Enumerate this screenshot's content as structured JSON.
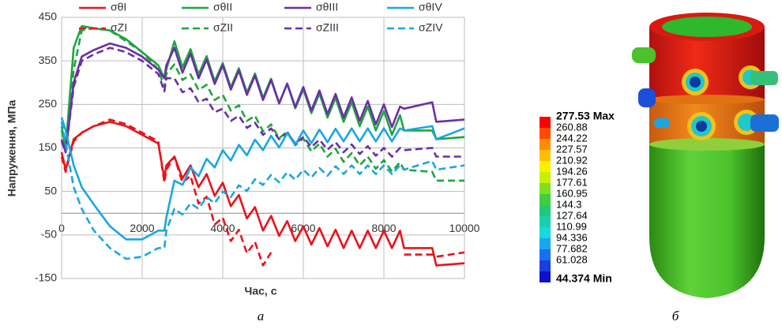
{
  "chart_data": {
    "type": "line",
    "y_label": "Напруження, МПа",
    "x_label": "Час, с",
    "caption": "а",
    "xlim": [
      0,
      10000
    ],
    "ylim": [
      -150,
      450
    ],
    "xticks": [
      0,
      2000,
      4000,
      6000,
      8000,
      10000
    ],
    "yticks": [
      -150,
      -50,
      50,
      150,
      250,
      350,
      450
    ],
    "grid": true,
    "x": [
      0,
      100,
      300,
      500,
      800,
      1200,
      1600,
      2000,
      2400,
      2550,
      2600,
      2800,
      3000,
      3200,
      3400,
      3600,
      3800,
      4000,
      4200,
      4400,
      4600,
      4800,
      5000,
      5200,
      5400,
      5600,
      5800,
      6000,
      6200,
      6400,
      6600,
      6800,
      7000,
      7200,
      7400,
      7600,
      7800,
      8000,
      8200,
      8400,
      8500,
      9200,
      9300,
      10000
    ],
    "series": [
      {
        "name": "σθI",
        "color": "#e8141c",
        "dashed": false,
        "values": [
          140,
          100,
          170,
          185,
          200,
          210,
          200,
          180,
          160,
          80,
          110,
          130,
          80,
          110,
          60,
          90,
          40,
          70,
          16,
          42,
          -12,
          14,
          -40,
          -6,
          -52,
          -18,
          -64,
          -30,
          -72,
          -34,
          -76,
          -38,
          -80,
          -40,
          -80,
          -40,
          -80,
          -40,
          -80,
          -40,
          -80,
          -80,
          -120,
          -115
        ]
      },
      {
        "name": "σZI",
        "color": "#e8141c",
        "dashed": true,
        "values": [
          130,
          95,
          165,
          185,
          200,
          215,
          205,
          185,
          165,
          70,
          100,
          130,
          70,
          86,
          22,
          38,
          -26,
          -10,
          -64,
          -38,
          -92,
          -66,
          -120,
          -90,
          null,
          null,
          null,
          null,
          null,
          null,
          null,
          null,
          null,
          null,
          null,
          null,
          null,
          null,
          null,
          null,
          -95,
          -95,
          -100,
          -90
        ]
      },
      {
        "name": "σθII",
        "color": "#1fa53c",
        "dashed": false,
        "values": [
          200,
          150,
          380,
          430,
          425,
          420,
          400,
          370,
          340,
          310,
          330,
          395,
          335,
          377,
          319,
          361,
          303,
          345,
          289,
          333,
          277,
          321,
          265,
          309,
          253,
          297,
          241,
          285,
          230,
          275,
          220,
          265,
          210,
          255,
          200,
          245,
          190,
          235,
          180,
          225,
          190,
          190,
          170,
          175
        ]
      },
      {
        "name": "σZII",
        "color": "#1fa53c",
        "dashed": true,
        "values": [
          190,
          150,
          330,
          420,
          425,
          420,
          395,
          370,
          330,
          290,
          320,
          342,
          306,
          319,
          283,
          295,
          260,
          272,
          236,
          248,
          212,
          224,
          188,
          204,
          172,
          188,
          156,
          172,
          142,
          160,
          130,
          148,
          118,
          138,
          110,
          130,
          102,
          122,
          96,
          117,
          100,
          95,
          75,
          75
        ]
      },
      {
        "name": "σθIII",
        "color": "#6a2fa6",
        "dashed": false,
        "values": [
          170,
          140,
          300,
          360,
          375,
          390,
          380,
          360,
          330,
          310,
          340,
          380,
          323,
          367,
          310,
          353,
          297,
          340,
          284,
          328,
          272,
          316,
          260,
          306,
          252,
          298,
          244,
          290,
          236,
          282,
          228,
          274,
          220,
          266,
          212,
          258,
          204,
          250,
          198,
          245,
          240,
          255,
          210,
          215
        ]
      },
      {
        "name": "σZIII",
        "color": "#6a2fa6",
        "dashed": true,
        "values": [
          165,
          140,
          290,
          350,
          365,
          380,
          370,
          350,
          320,
          280,
          310,
          310,
          278,
          287,
          255,
          263,
          232,
          240,
          212,
          224,
          196,
          208,
          180,
          195,
          170,
          185,
          160,
          175,
          152,
          169,
          146,
          163,
          140,
          158,
          136,
          154,
          132,
          150,
          130,
          150,
          145,
          150,
          130,
          130
        ]
      },
      {
        "name": "σθIV",
        "color": "#1aa7e0",
        "dashed": false,
        "values": [
          220,
          190,
          110,
          60,
          20,
          -30,
          -60,
          -60,
          -40,
          -40,
          -10,
          75,
          65,
          105,
          85,
          125,
          105,
          145,
          121,
          157,
          133,
          169,
          145,
          178,
          151,
          184,
          157,
          190,
          161,
          192,
          163,
          194,
          165,
          195,
          165,
          195,
          165,
          195,
          165,
          195,
          190,
          200,
          170,
          195
        ]
      },
      {
        "name": "σZIV",
        "color": "#1aa7e0",
        "dashed": true,
        "values": [
          210,
          160,
          60,
          10,
          -40,
          -80,
          -105,
          -100,
          -80,
          -80,
          -40,
          10,
          -3,
          23,
          10,
          37,
          23,
          50,
          37,
          64,
          51,
          78,
          65,
          88,
          71,
          94,
          77,
          100,
          82,
          104,
          86,
          108,
          90,
          110,
          90,
          110,
          90,
          110,
          90,
          110,
          100,
          120,
          100,
          110
        ]
      }
    ]
  },
  "contour_legend": {
    "labels": [
      "277.53 Max",
      "260.88",
      "244.22",
      "227.57",
      "210.92",
      "194.26",
      "177.61",
      "160.95",
      "144.3",
      "127.64",
      "110.99",
      "94.336",
      "77.682",
      "61.028",
      "44.374 Min"
    ]
  },
  "caption_right": "б"
}
